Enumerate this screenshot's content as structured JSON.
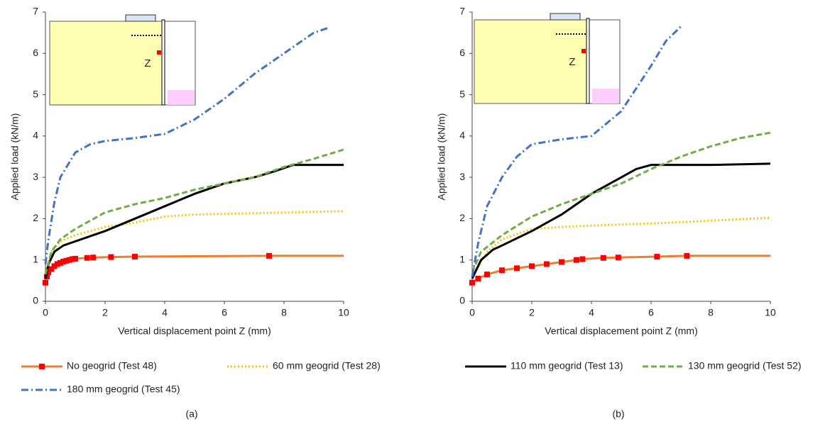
{
  "chart_data": [
    {
      "type": "line",
      "label": "(a)",
      "x_label": "Vertical displacement point Z (mm)",
      "y_label": "Applied load (kN/m)",
      "inset_label": "Z",
      "xlim": [
        0,
        10
      ],
      "ylim": [
        0,
        7
      ],
      "xticks": [
        0,
        2,
        4,
        6,
        8,
        10
      ],
      "yticks": [
        0,
        1,
        2,
        3,
        4,
        5,
        6,
        7
      ],
      "grid": false,
      "legend": "bottom",
      "series": [
        {
          "name": "No geogrid (Test 48)",
          "color": "#ed7d31",
          "marker_color": "#ff0000",
          "dash": "solid",
          "x": [
            0,
            0.05,
            0.1,
            0.2,
            0.3,
            0.4,
            0.5,
            0.6,
            0.7,
            0.8,
            0.9,
            1.0,
            1.4,
            1.6,
            2.2,
            3.0,
            7.5,
            10
          ],
          "values": [
            0.45,
            0.6,
            0.7,
            0.78,
            0.85,
            0.9,
            0.93,
            0.96,
            0.98,
            1.0,
            1.02,
            1.03,
            1.05,
            1.06,
            1.07,
            1.08,
            1.1,
            1.1
          ]
        },
        {
          "name": "60 mm geogrid (Test 28)",
          "color": "#ffc000",
          "dash": "dot",
          "x": [
            0,
            0.2,
            0.5,
            1,
            2,
            3,
            4,
            5,
            7,
            10
          ],
          "values": [
            0.7,
            1.2,
            1.45,
            1.6,
            1.8,
            1.9,
            2.05,
            2.1,
            2.13,
            2.18
          ]
        },
        {
          "name": "110 mm geogrid (Test 13)",
          "color": "#000000",
          "dash": "solid",
          "x": [
            0,
            0.1,
            0.3,
            0.6,
            1,
            2,
            3,
            4,
            5,
            6,
            7,
            7.7,
            8.3,
            10
          ],
          "values": [
            0.55,
            0.9,
            1.2,
            1.35,
            1.45,
            1.7,
            2.0,
            2.3,
            2.6,
            2.85,
            3.0,
            3.15,
            3.3,
            3.3
          ]
        },
        {
          "name": "130 mm geogrid (Test 52)",
          "color": "#70ad47",
          "dash": "dash",
          "x": [
            0,
            0.2,
            0.5,
            1,
            2,
            3,
            4,
            5,
            6,
            7,
            8,
            9,
            10
          ],
          "values": [
            0.65,
            1.2,
            1.5,
            1.75,
            2.15,
            2.35,
            2.5,
            2.7,
            2.85,
            3.0,
            3.25,
            3.45,
            3.67
          ]
        },
        {
          "name": "180 mm geogrid (Test 45)",
          "color": "#4472c4",
          "dash": "dashdot",
          "x": [
            0,
            0.1,
            0.3,
            0.5,
            1,
            1.5,
            2,
            3,
            4,
            5,
            6,
            7,
            8,
            9,
            9.5
          ],
          "values": [
            0.9,
            1.5,
            2.4,
            3.0,
            3.6,
            3.8,
            3.88,
            3.95,
            4.05,
            4.4,
            4.9,
            5.5,
            6.0,
            6.5,
            6.62
          ]
        }
      ]
    },
    {
      "type": "line",
      "label": "(b)",
      "x_label": "Vertical displacement point Z (mm)",
      "y_label": "Applied load (kN/m)",
      "inset_label": "Z",
      "xlim": [
        0,
        10
      ],
      "ylim": [
        0,
        7
      ],
      "xticks": [
        0,
        2,
        4,
        6,
        8,
        10
      ],
      "yticks": [
        0,
        1,
        2,
        3,
        4,
        5,
        6,
        7
      ],
      "grid": false,
      "series": [
        {
          "color": "#ed7d31",
          "marker_color": "#ff0000",
          "dash": "solid",
          "x": [
            0,
            0.2,
            0.5,
            1,
            1.5,
            2,
            2.5,
            3,
            3.5,
            3.7,
            4.4,
            4.9,
            6.2,
            7.2,
            10
          ],
          "values": [
            0.45,
            0.55,
            0.65,
            0.75,
            0.8,
            0.85,
            0.9,
            0.95,
            1.0,
            1.02,
            1.05,
            1.06,
            1.08,
            1.1,
            1.1
          ]
        },
        {
          "color": "#ffc000",
          "dash": "dot",
          "x": [
            0,
            0.5,
            1,
            2,
            3,
            4,
            5,
            6,
            8,
            10
          ],
          "values": [
            0.6,
            1.2,
            1.5,
            1.75,
            1.8,
            1.83,
            1.86,
            1.88,
            1.95,
            2.02
          ]
        },
        {
          "color": "#000000",
          "dash": "solid",
          "x": [
            0,
            0.3,
            0.7,
            1,
            2,
            3,
            4,
            5,
            5.5,
            6,
            8,
            10
          ],
          "values": [
            0.55,
            1.0,
            1.25,
            1.35,
            1.7,
            2.1,
            2.6,
            3.0,
            3.2,
            3.3,
            3.3,
            3.33
          ]
        },
        {
          "color": "#70ad47",
          "dash": "dash",
          "x": [
            0,
            0.3,
            1,
            2,
            3,
            4,
            5,
            6,
            7,
            8,
            9,
            10
          ],
          "values": [
            0.7,
            1.2,
            1.6,
            2.05,
            2.35,
            2.6,
            2.85,
            3.2,
            3.5,
            3.75,
            3.95,
            4.08
          ]
        },
        {
          "color": "#4472c4",
          "dash": "dashdot",
          "x": [
            0,
            0.2,
            0.5,
            1,
            1.5,
            2,
            3,
            4,
            5,
            6,
            6.5,
            7
          ],
          "values": [
            0.6,
            1.4,
            2.3,
            3.0,
            3.5,
            3.8,
            3.92,
            4.0,
            4.6,
            5.7,
            6.3,
            6.65
          ]
        }
      ]
    }
  ]
}
